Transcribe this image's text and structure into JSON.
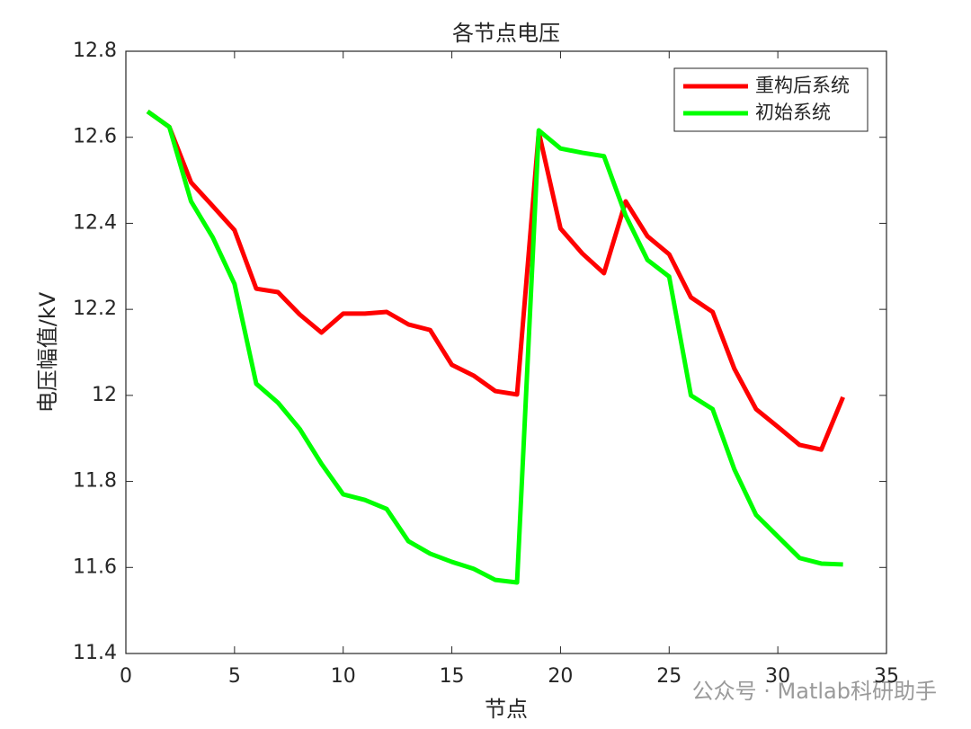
{
  "chart_data": {
    "type": "line",
    "title": "各节点电压",
    "xlabel": "节点",
    "ylabel": "电压幅值/kV",
    "x": [
      1,
      2,
      3,
      4,
      5,
      6,
      7,
      8,
      9,
      10,
      11,
      12,
      13,
      14,
      15,
      16,
      17,
      18,
      19,
      20,
      21,
      22,
      23,
      24,
      25,
      26,
      27,
      28,
      29,
      30,
      31,
      32,
      33
    ],
    "series": [
      {
        "name": "重构后系统",
        "color": "#ff0000",
        "values": [
          12.66,
          12.624,
          12.495,
          12.44,
          12.384,
          12.248,
          12.24,
          12.188,
          12.146,
          12.19,
          12.19,
          12.194,
          12.165,
          12.152,
          12.071,
          12.046,
          12.01,
          12.002,
          12.612,
          12.388,
          12.33,
          12.284,
          12.451,
          12.37,
          12.328,
          12.228,
          12.194,
          12.062,
          11.968,
          11.927,
          11.885,
          11.874,
          11.996
        ]
      },
      {
        "name": "初始系统",
        "color": "#00ff00",
        "values": [
          12.66,
          12.624,
          12.451,
          12.367,
          12.259,
          12.027,
          11.983,
          11.922,
          11.841,
          11.77,
          11.757,
          11.736,
          11.661,
          11.632,
          11.613,
          11.597,
          11.571,
          11.565,
          12.616,
          12.574,
          12.564,
          12.556,
          12.418,
          12.315,
          12.276,
          12.0,
          11.968,
          11.828,
          11.722,
          11.672,
          11.622,
          11.609,
          11.607
        ]
      }
    ],
    "xlim": [
      0,
      35
    ],
    "xticks": [
      0,
      5,
      10,
      15,
      20,
      25,
      30,
      35
    ],
    "ylim": [
      11.4,
      12.8
    ],
    "yticks": [
      11.4,
      11.6,
      11.8,
      12,
      12.2,
      12.4,
      12.6,
      12.8
    ],
    "legend": "top-right",
    "watermark": "公众号 · Matlab科研助手"
  }
}
